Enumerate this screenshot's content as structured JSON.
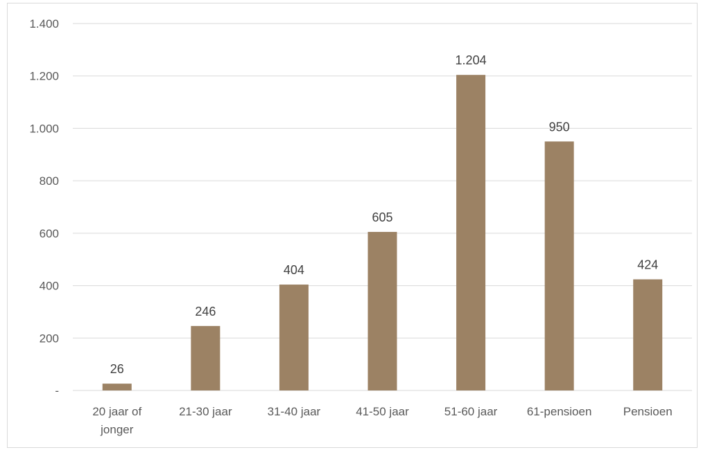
{
  "chart_data": {
    "type": "bar",
    "categories": [
      [
        "20 jaar of",
        "jonger"
      ],
      [
        "21-30 jaar"
      ],
      [
        "31-40 jaar"
      ],
      [
        "41-50 jaar"
      ],
      [
        "51-60 jaar"
      ],
      [
        "61-pensioen"
      ],
      [
        "Pensioen"
      ]
    ],
    "values": [
      26,
      246,
      404,
      605,
      1204,
      950,
      424
    ],
    "value_labels": [
      "26",
      "246",
      "404",
      "605",
      "1.204",
      "950",
      "424"
    ],
    "ylim": [
      0,
      1400
    ],
    "yticks": [
      0,
      200,
      400,
      600,
      800,
      1000,
      1200,
      1400
    ],
    "ytick_labels": [
      "-",
      "200",
      "400",
      "600",
      "800",
      "1.000",
      "1.200",
      "1.400"
    ],
    "grid": true,
    "bar_color": "#9c8264",
    "grid_color": "#d9d9d9"
  }
}
